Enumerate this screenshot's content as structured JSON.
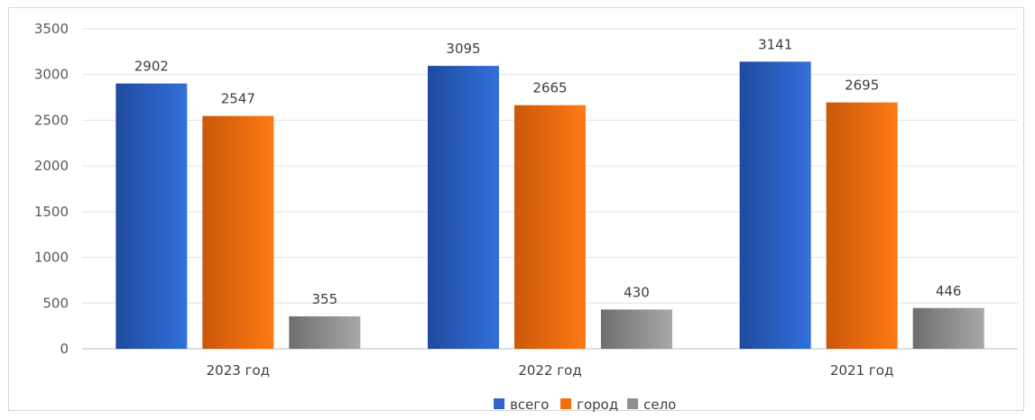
{
  "chart_data": {
    "type": "bar",
    "title": "",
    "xlabel": "",
    "ylabel": "",
    "ylim": [
      0,
      3500
    ],
    "yticks": [
      0,
      500,
      1000,
      1500,
      2000,
      2500,
      3000,
      3500
    ],
    "grid": true,
    "legend_position": "bottom",
    "categories": [
      "2023 год",
      "2022 год",
      "2021 год"
    ],
    "series": [
      {
        "name": "всего",
        "values": [
          2902,
          3095,
          3141
        ],
        "color": "#2f64c8"
      },
      {
        "name": "город",
        "values": [
          2547,
          2665,
          2695
        ],
        "color": "#f07010"
      },
      {
        "name": "село",
        "values": [
          355,
          430,
          446
        ],
        "color": "#8f8f8f"
      }
    ]
  }
}
